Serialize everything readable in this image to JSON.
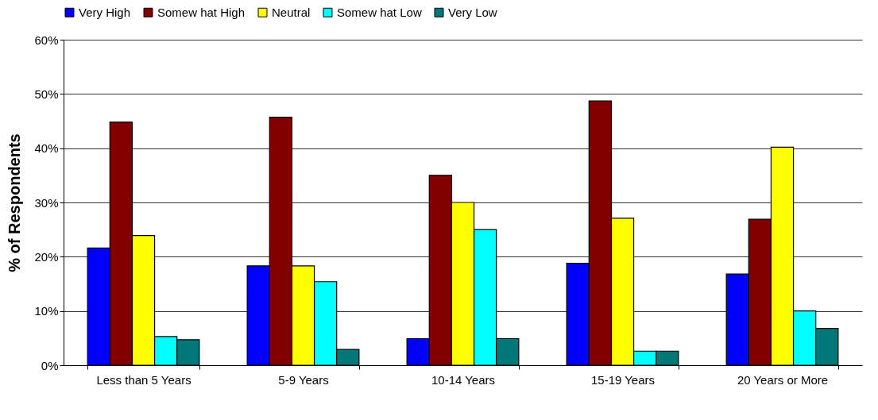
{
  "chart_data": {
    "type": "bar",
    "ylabel": "% of Respondents",
    "categories": [
      "Less than 5 Years",
      "5-9 Years",
      "10-14 Years",
      "15-19 Years",
      "20 Years or More"
    ],
    "series": [
      {
        "name": "Very High",
        "color": "#0000ff",
        "values": [
          21.6,
          18.3,
          4.9,
          18.8,
          16.8
        ]
      },
      {
        "name": "Somew hat High",
        "color": "#800000",
        "values": [
          44.8,
          45.7,
          35.0,
          48.7,
          26.9
        ]
      },
      {
        "name": "Neutral",
        "color": "#ffff00",
        "values": [
          23.9,
          18.3,
          30.0,
          27.1,
          40.2
        ]
      },
      {
        "name": "Somew hat Low",
        "color": "#00ffff",
        "values": [
          5.3,
          15.4,
          25.0,
          2.6,
          10.0
        ]
      },
      {
        "name": "Very Low",
        "color": "#007878",
        "values": [
          4.7,
          2.9,
          4.9,
          2.6,
          6.8
        ]
      }
    ],
    "ylim": [
      0,
      60
    ],
    "yticks": [
      {
        "value": 0,
        "label": "0%"
      },
      {
        "value": 10,
        "label": "10%"
      },
      {
        "value": 20,
        "label": "20%"
      },
      {
        "value": 30,
        "label": "30%"
      },
      {
        "value": 40,
        "label": "40%"
      },
      {
        "value": 50,
        "label": "50%"
      },
      {
        "value": 60,
        "label": "60%"
      }
    ],
    "grid": "y",
    "legend": "top"
  }
}
